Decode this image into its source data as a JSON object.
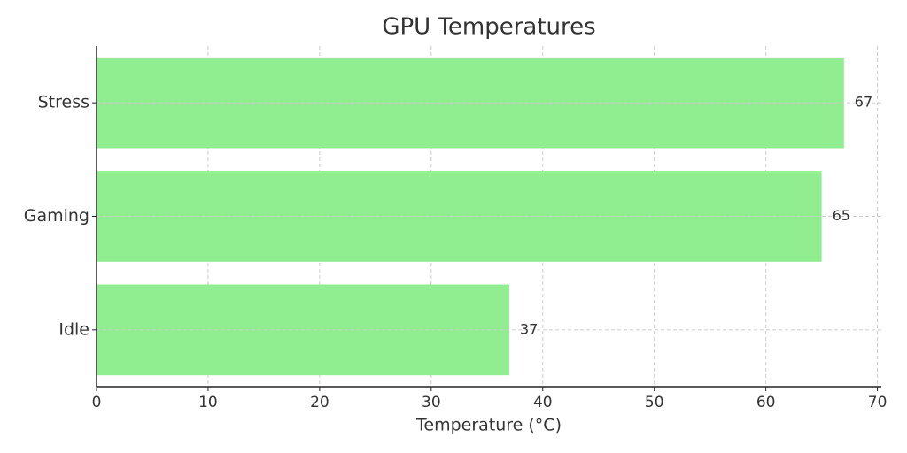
{
  "chart_data": {
    "type": "barh",
    "title": "GPU Temperatures",
    "xlabel": "Temperature (°C)",
    "categories": [
      "Stress",
      "Gaming",
      "Idle"
    ],
    "values": [
      67,
      65,
      37
    ],
    "color": "#90ee90",
    "xlim": [
      0,
      70.35
    ],
    "xticks": [
      0,
      10,
      20,
      30,
      40,
      50,
      60,
      70
    ],
    "grid": true
  }
}
